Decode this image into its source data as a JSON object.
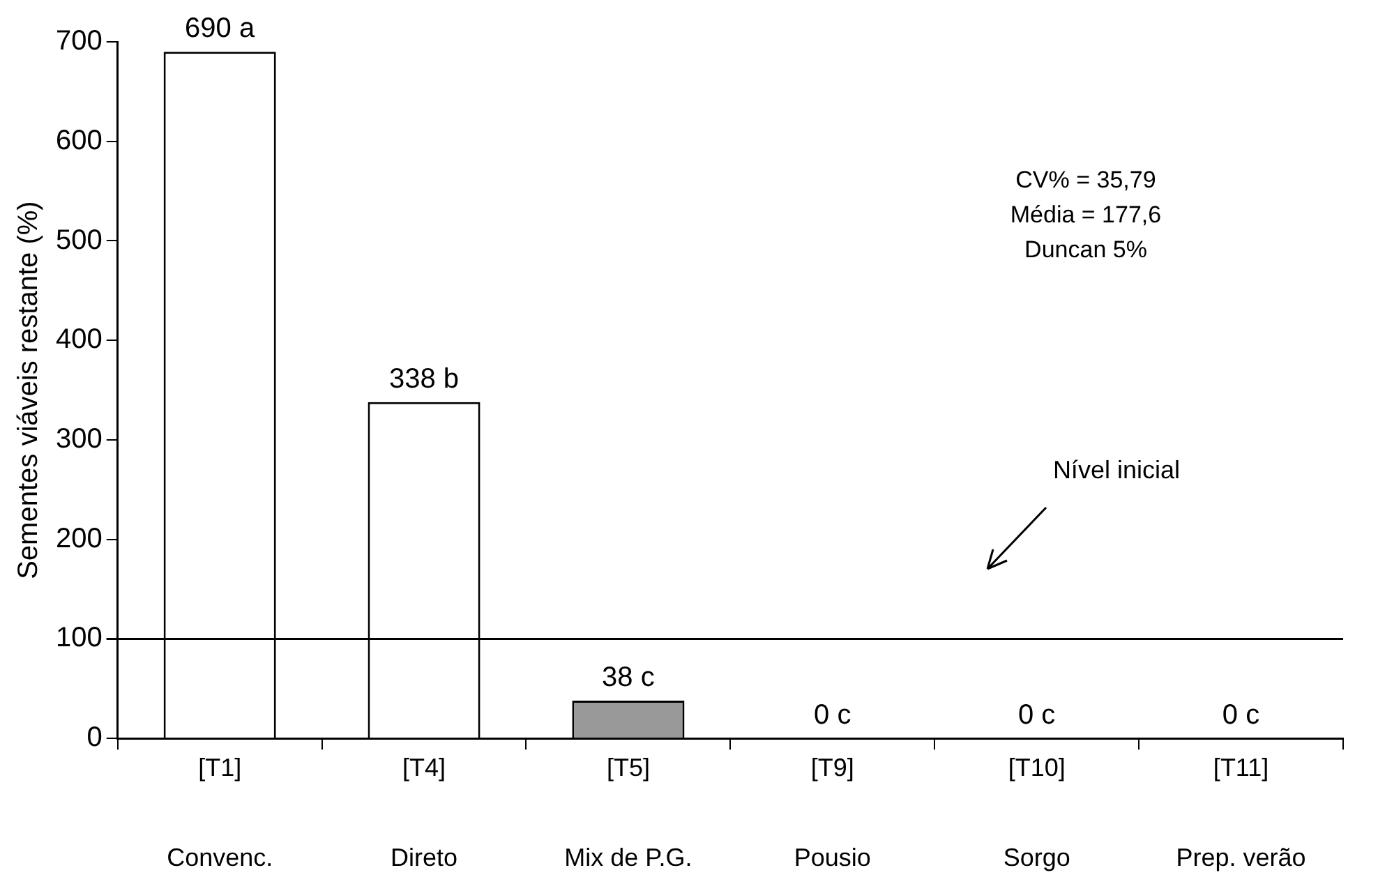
{
  "chart_data": {
    "type": "bar",
    "ylabel": "Sementes viáveis restante (%)",
    "categories": [
      "[T1]\nConvenc.",
      "[T4]\nDireto",
      "[T5]\nMix de P.G.",
      "[T9]\nPousio",
      "[T10]\nSorgo",
      "[T11]\nPrep. verão"
    ],
    "values": [
      690,
      338,
      38,
      0,
      0,
      0
    ],
    "colors": [
      "#ffffff",
      "#ffffff",
      "#999999",
      "#ffffff",
      "#ffffff",
      "#ffffff"
    ],
    "value_labels": [
      "690 a",
      "338 b",
      "38 c",
      "0 c",
      "0 c",
      "0 c"
    ],
    "ylim": [
      0,
      700
    ],
    "yticks": [
      0,
      100,
      200,
      300,
      400,
      500,
      600,
      700
    ],
    "ref_lines": [
      {
        "axis": "y",
        "value": 100,
        "label": "Nível inicial",
        "color": "#000000"
      }
    ],
    "annotations": [
      "CV% = 35,79\nMédia = 177,6\nDuncan 5%"
    ],
    "grid": false,
    "legend": false
  }
}
